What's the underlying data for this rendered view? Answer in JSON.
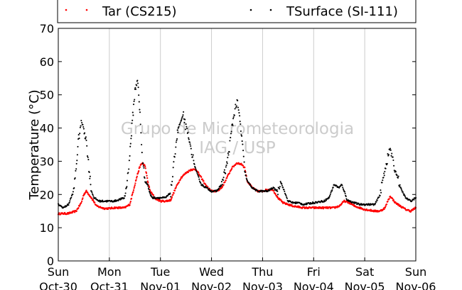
{
  "chart_data": {
    "type": "scatter",
    "ylabel": "Temperature (°C)",
    "xlabel": "",
    "ylim": [
      0,
      70
    ],
    "yticks": [
      0,
      10,
      20,
      30,
      40,
      50,
      60,
      70
    ],
    "xlim": [
      0,
      7
    ],
    "xticks": [
      {
        "day": "Sun",
        "date": "Oct-30",
        "x": 0
      },
      {
        "day": "Mon",
        "date": "Oct-31",
        "x": 1
      },
      {
        "day": "Tue",
        "date": "Nov-01",
        "x": 2
      },
      {
        "day": "Wed",
        "date": "Nov-02",
        "x": 3
      },
      {
        "day": "Thu",
        "date": "Nov-03",
        "x": 4
      },
      {
        "day": "Fri",
        "date": "Nov-04",
        "x": 5
      },
      {
        "day": "Sat",
        "date": "Nov-05",
        "x": 6
      },
      {
        "day": "Sun",
        "date": "Nov-06",
        "x": 7
      }
    ],
    "grid": "vertical",
    "legend_position": "top",
    "watermark": [
      "Grupo de Micrometeorologia",
      "IAG / USP"
    ],
    "series": [
      {
        "name": "Tar (CS215)",
        "color": "#ff0000",
        "x": [
          0,
          0.2,
          0.35,
          0.45,
          0.5,
          0.55,
          0.65,
          0.75,
          0.9,
          1,
          1.1,
          1.3,
          1.4,
          1.45,
          1.5,
          1.55,
          1.6,
          1.65,
          1.7,
          1.75,
          1.8,
          1.9,
          2,
          2.1,
          2.2,
          2.3,
          2.4,
          2.5,
          2.6,
          2.7,
          2.8,
          2.9,
          3,
          3.1,
          3.2,
          3.3,
          3.4,
          3.5,
          3.6,
          3.65,
          3.7,
          3.8,
          3.9,
          4,
          4.1,
          4.2,
          4.3,
          4.4,
          4.5,
          4.6,
          4.8,
          5,
          5.2,
          5.4,
          5.5,
          5.6,
          5.7,
          5.8,
          6,
          6.2,
          6.3,
          6.4,
          6.45,
          6.5,
          6.6,
          6.7,
          6.8,
          6.9,
          7
        ],
        "y": [
          14.2,
          14.3,
          15,
          17.5,
          20,
          21,
          19,
          16.5,
          15.8,
          15.8,
          16,
          16,
          17,
          20,
          23,
          26,
          28.5,
          29.5,
          28.5,
          24,
          21,
          18.8,
          18,
          18,
          18.3,
          22,
          25,
          26.5,
          27.5,
          27.5,
          25,
          22.5,
          21,
          21,
          22,
          25,
          28,
          29.5,
          29,
          28,
          24,
          22,
          21,
          21,
          21.5,
          21.5,
          19,
          17.5,
          17,
          16.5,
          16,
          16,
          16,
          16,
          16.5,
          18,
          17.5,
          16.5,
          15.5,
          15,
          15,
          16,
          18,
          19.5,
          17.5,
          16.5,
          15.5,
          15,
          16
        ]
      },
      {
        "name": "TSurface (SI-111)",
        "color": "#000000",
        "x": [
          0,
          0.1,
          0.2,
          0.3,
          0.35,
          0.4,
          0.45,
          0.5,
          0.55,
          0.6,
          0.65,
          0.7,
          0.75,
          0.8,
          0.9,
          1,
          1.1,
          1.3,
          1.35,
          1.4,
          1.45,
          1.5,
          1.55,
          1.6,
          1.65,
          1.7,
          1.75,
          1.8,
          1.85,
          1.9,
          2,
          2.1,
          2.2,
          2.25,
          2.3,
          2.35,
          2.4,
          2.45,
          2.5,
          2.55,
          2.6,
          2.65,
          2.7,
          2.75,
          2.8,
          2.9,
          3,
          3.1,
          3.2,
          3.3,
          3.35,
          3.4,
          3.45,
          3.5,
          3.55,
          3.6,
          3.65,
          3.7,
          3.75,
          3.8,
          3.9,
          4,
          4.1,
          4.2,
          4.3,
          4.35,
          4.4,
          4.45,
          4.5,
          4.6,
          4.7,
          4.8,
          5,
          5.2,
          5.3,
          5.4,
          5.5,
          5.55,
          5.6,
          5.65,
          5.7,
          5.8,
          5.9,
          6,
          6.2,
          6.3,
          6.35,
          6.4,
          6.45,
          6.5,
          6.55,
          6.6,
          6.65,
          6.7,
          6.8,
          6.9,
          7
        ],
        "y": [
          17,
          16,
          17,
          21,
          28,
          37,
          42,
          40,
          36,
          28,
          21,
          19,
          18.5,
          18,
          18,
          18,
          18,
          19,
          24,
          32,
          42,
          51,
          55,
          44,
          30,
          24,
          23,
          20,
          19,
          19,
          19,
          19,
          20.5,
          27,
          35,
          40,
          42,
          44,
          40,
          37,
          34,
          30,
          27,
          25,
          23,
          22,
          21,
          21,
          23,
          29,
          34,
          40,
          45,
          48,
          43,
          36,
          27,
          24,
          23,
          22,
          21,
          21,
          21,
          22,
          21,
          24,
          22,
          20,
          18,
          17.5,
          17.5,
          17,
          17.5,
          18,
          19,
          23,
          22,
          23,
          21,
          18.5,
          18,
          17.5,
          17,
          17,
          17,
          20,
          24,
          28,
          31,
          34,
          30,
          27,
          25,
          22,
          19,
          18,
          19
        ]
      }
    ]
  }
}
